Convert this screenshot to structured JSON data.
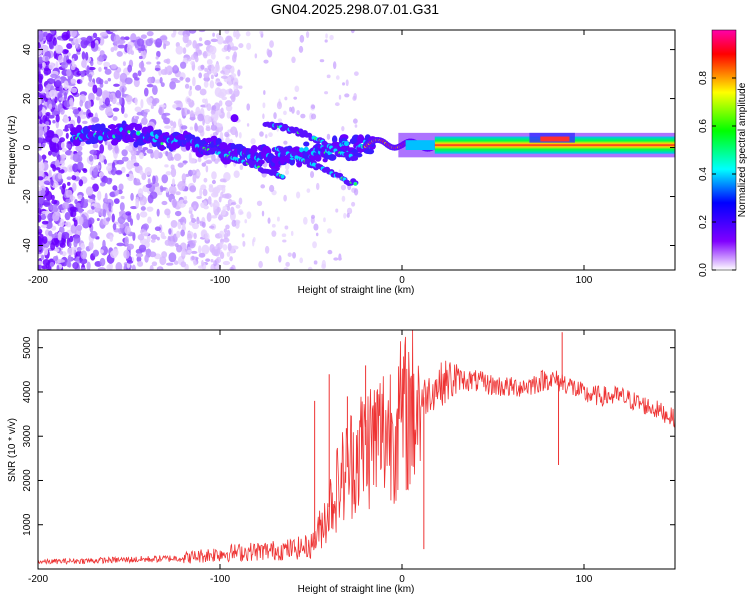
{
  "title": "GN04.2025.298.07.01.G31",
  "chart_data": [
    {
      "type": "heatmap",
      "title": "GN04.2025.298.07.01.G31",
      "xlabel": "Height of straight line (km)",
      "ylabel": "Frequency (Hz)",
      "xlim": [
        -200,
        150
      ],
      "ylim": [
        -50,
        48
      ],
      "xticks": [
        -200,
        -100,
        0,
        100
      ],
      "yticks": [
        -40,
        -20,
        0,
        20,
        40
      ],
      "colorbar": {
        "label": "Normalized spectral amplitude",
        "range": [
          0,
          1
        ],
        "ticks": [
          "0.0",
          "0.2",
          "0.4",
          "0.6",
          "0.8"
        ]
      },
      "main_track": [
        {
          "x": -180,
          "y": 5
        },
        {
          "x": -160,
          "y": 6
        },
        {
          "x": -140,
          "y": 4
        },
        {
          "x": -120,
          "y": 2
        },
        {
          "x": -110,
          "y": 1
        },
        {
          "x": -100,
          "y": -1
        },
        {
          "x": -90,
          "y": -3
        },
        {
          "x": -80,
          "y": -4
        },
        {
          "x": -70,
          "y": -4
        },
        {
          "x": -60,
          "y": -3
        },
        {
          "x": -50,
          "y": -2
        },
        {
          "x": -40,
          "y": -1
        },
        {
          "x": -30,
          "y": 0
        },
        {
          "x": -20,
          "y": 1
        },
        {
          "x": -10,
          "y": 2
        },
        {
          "x": 0,
          "y": 1
        },
        {
          "x": 20,
          "y": 1
        },
        {
          "x": 60,
          "y": 1
        },
        {
          "x": 80,
          "y": 2
        },
        {
          "x": 100,
          "y": 1
        },
        {
          "x": 150,
          "y": 1
        }
      ],
      "secondary_tracks": [
        [
          {
            "x": -75,
            "y": 10
          },
          {
            "x": -60,
            "y": 7
          },
          {
            "x": -45,
            "y": 3
          },
          {
            "x": -35,
            "y": -2
          },
          {
            "x": -25,
            "y": -4
          }
        ],
        [
          {
            "x": -70,
            "y": 0
          },
          {
            "x": -55,
            "y": -5
          },
          {
            "x": -45,
            "y": -8
          },
          {
            "x": -35,
            "y": -12
          },
          {
            "x": -25,
            "y": -15
          }
        ],
        [
          {
            "x": -110,
            "y": 0
          },
          {
            "x": -90,
            "y": -5
          },
          {
            "x": -75,
            "y": -9
          },
          {
            "x": -65,
            "y": -12
          }
        ]
      ]
    },
    {
      "type": "line",
      "xlabel": "Height of straight line (km)",
      "ylabel": "SNR (10 * v/v)",
      "xlim": [
        -200,
        150
      ],
      "ylim": [
        0,
        5400
      ],
      "xticks": [
        -200,
        -100,
        0,
        100
      ],
      "yticks": [
        1000,
        2000,
        3000,
        4000,
        5000
      ],
      "series": [
        {
          "name": "SNR",
          "color": "#ee3333",
          "x": [
            -200,
            -180,
            -160,
            -140,
            -120,
            -100,
            -80,
            -70,
            -60,
            -50,
            -45,
            -40,
            -35,
            -30,
            -25,
            -20,
            -15,
            -10,
            -5,
            0,
            5,
            10,
            15,
            20,
            25,
            30,
            40,
            50,
            60,
            70,
            80,
            90,
            100,
            110,
            120,
            130,
            140,
            150
          ],
          "y": [
            160,
            180,
            200,
            220,
            250,
            350,
            400,
            420,
            450,
            520,
            900,
            1400,
            1900,
            2300,
            2600,
            2800,
            2950,
            3100,
            3250,
            3400,
            3600,
            3800,
            4000,
            4150,
            4250,
            4300,
            4250,
            4150,
            4100,
            4150,
            4300,
            4200,
            3950,
            3900,
            3900,
            3750,
            3600,
            3400
          ]
        }
      ],
      "spikes": [
        {
          "x": -48,
          "y": 3800
        },
        {
          "x": -40,
          "y": 4400
        },
        {
          "x": -20,
          "y": 4600
        },
        {
          "x": -30,
          "y": 3900
        },
        {
          "x": 12,
          "y": 450
        },
        {
          "x": 88,
          "y": 5350
        },
        {
          "x": 86,
          "y": 2350
        }
      ]
    }
  ]
}
